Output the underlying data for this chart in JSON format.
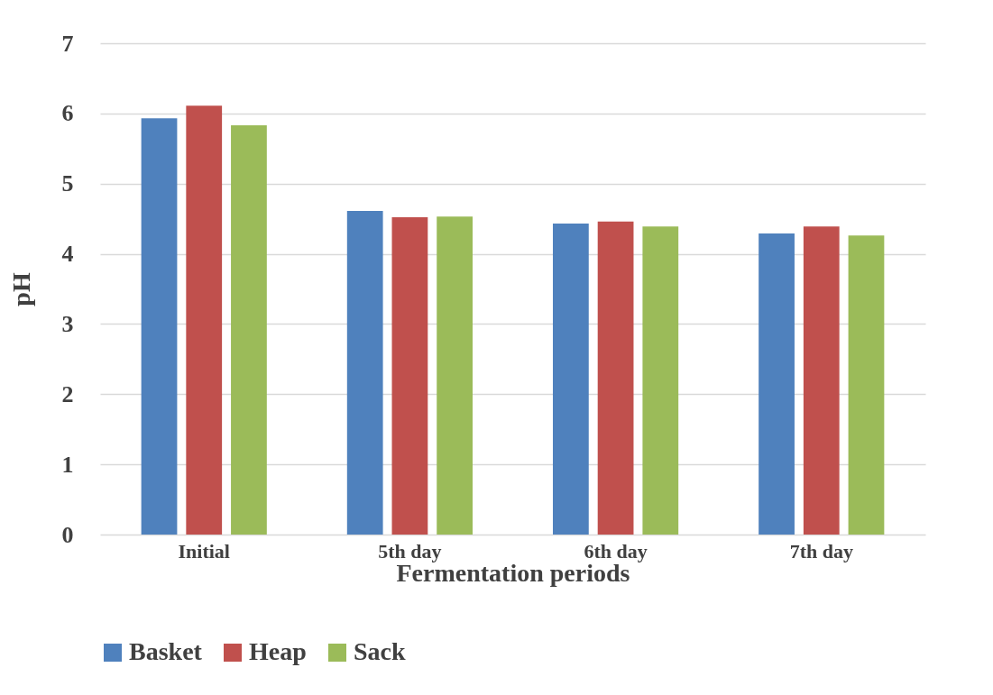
{
  "chart_data": {
    "type": "bar",
    "xlabel": "Fermentation periods",
    "ylabel": "pH",
    "categories": [
      "Initial",
      "5th day",
      "6th day",
      "7th day"
    ],
    "series": [
      {
        "name": "Basket",
        "color": "#4f81bd",
        "values": [
          5.93,
          4.61,
          4.43,
          4.29
        ]
      },
      {
        "name": "Heap",
        "color": "#c0504d",
        "values": [
          6.11,
          4.52,
          4.46,
          4.39
        ]
      },
      {
        "name": "Sack",
        "color": "#9bbb59",
        "values": [
          5.83,
          4.53,
          4.39,
          4.26
        ]
      }
    ],
    "ylim": [
      0,
      7
    ],
    "yticks": [
      0,
      1,
      2,
      3,
      4,
      5,
      6,
      7
    ],
    "grid": "y",
    "legend": "bottom"
  }
}
